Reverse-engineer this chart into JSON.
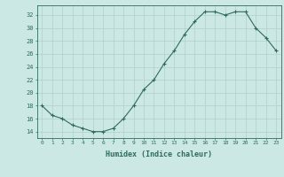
{
  "x": [
    0,
    1,
    2,
    3,
    4,
    5,
    6,
    7,
    8,
    9,
    10,
    11,
    12,
    13,
    14,
    15,
    16,
    17,
    18,
    19,
    20,
    21,
    22,
    23
  ],
  "y": [
    18,
    16.5,
    16,
    15,
    14.5,
    14,
    14,
    14.5,
    16,
    18,
    20.5,
    22,
    24.5,
    26.5,
    29,
    31,
    32.5,
    32.5,
    32,
    32.5,
    32.5,
    30,
    28.5,
    26.5
  ],
  "line_color": "#2e6b5e",
  "marker": "+",
  "bg_color": "#cce8e4",
  "grid_color": "#aed0cc",
  "tick_color": "#2e6b5e",
  "label_color": "#2e6b5e",
  "xlabel": "Humidex (Indice chaleur)",
  "ylim": [
    13,
    33.5
  ],
  "xlim": [
    -0.5,
    23.5
  ],
  "yticks": [
    14,
    16,
    18,
    20,
    22,
    24,
    26,
    28,
    30,
    32
  ],
  "title": ""
}
